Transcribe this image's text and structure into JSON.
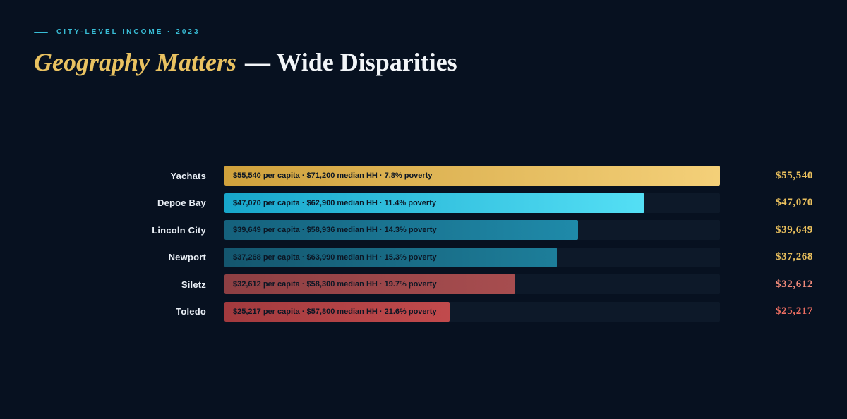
{
  "eyebrow": "CITY-LEVEL INCOME · 2023",
  "title": {
    "accent": "Geography Matters",
    "rest": "— Wide Disparities"
  },
  "colors": {
    "background": "#071120",
    "track": "#0d1929",
    "eyebrow_accent": "#38bdd6",
    "title_accent": "#e9c261",
    "title_rest": "#f2f5f8"
  },
  "chart_data": {
    "type": "bar",
    "orientation": "horizontal",
    "title": "Geography Matters — Wide Disparities",
    "subtitle": "City-level income · 2023",
    "value_metric": "per capita income (USD)",
    "xlim": [
      0,
      55540
    ],
    "grid": false,
    "legend": "none",
    "rows": [
      {
        "city": "Yachats",
        "per_capita": 55540,
        "median_hh": 71200,
        "poverty_pct": 7.8,
        "bar_label": "$55,540 per capita · $71,200 median HH · 7.8% poverty",
        "value_label": "$55,540",
        "color_start": "#cfa13c",
        "color_end": "#f4d079",
        "value_color": "#ecc25e"
      },
      {
        "city": "Depoe Bay",
        "per_capita": 47070,
        "median_hh": 62900,
        "poverty_pct": 11.4,
        "bar_label": "$47,070 per capita · $62,900 median HH · 11.4% poverty",
        "value_label": "$47,070",
        "color_start": "#17a6cb",
        "color_end": "#54dff5",
        "value_color": "#ecc25e"
      },
      {
        "city": "Lincoln City",
        "per_capita": 39649,
        "median_hh": 58936,
        "poverty_pct": 14.3,
        "bar_label": "$39,649 per capita · $58,936 median HH · 14.3% poverty",
        "value_label": "$39,649",
        "color_start": "#15617c",
        "color_end": "#1f8aa9",
        "value_color": "#ecc25e"
      },
      {
        "city": "Newport",
        "per_capita": 37268,
        "median_hh": 63990,
        "poverty_pct": 15.3,
        "bar_label": "$37,268 per capita · $63,990 median HH · 15.3% poverty",
        "value_label": "$37,268",
        "color_start": "#14566e",
        "color_end": "#1d7e9a",
        "value_color": "#ecc25e"
      },
      {
        "city": "Siletz",
        "per_capita": 32612,
        "median_hh": 58300,
        "poverty_pct": 19.7,
        "bar_label": "$32,612 per capita · $58,300 median HH · 19.7% poverty",
        "value_label": "$32,612",
        "color_start": "#8d3f43",
        "color_end": "#a74d4f",
        "value_color": "#f08a7a"
      },
      {
        "city": "Toledo",
        "per_capita": 25217,
        "median_hh": 57800,
        "poverty_pct": 21.6,
        "bar_label": "$25,217 per capita · $57,800 median HH · 21.6% poverty",
        "value_label": "$25,217",
        "color_start": "#a23a3e",
        "color_end": "#c14a4c",
        "value_color": "#ee6f62"
      }
    ]
  }
}
